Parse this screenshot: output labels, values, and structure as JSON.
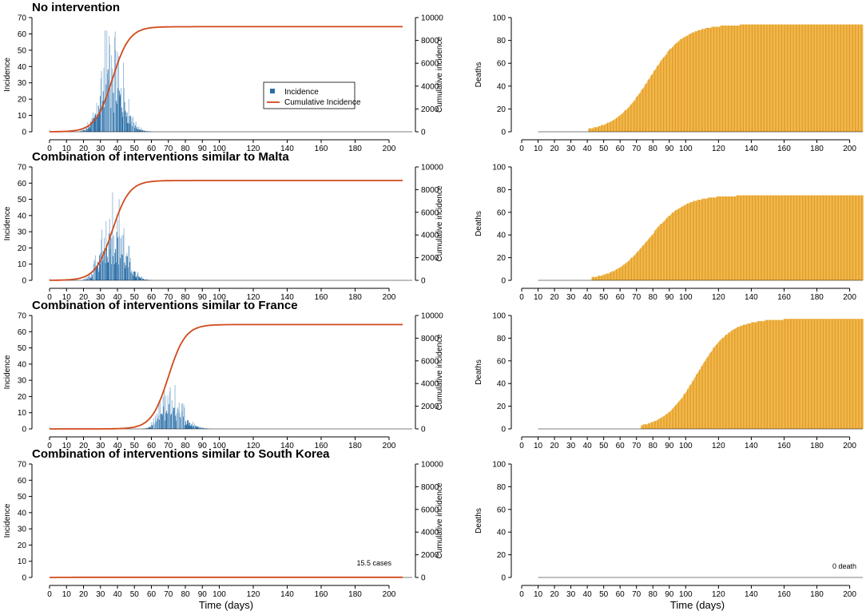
{
  "chart_data": {
    "type": "multi-panel bar/line",
    "xlabel": "Time (days)",
    "x_ticks": [
      0,
      10,
      20,
      30,
      40,
      50,
      60,
      70,
      80,
      90,
      100,
      120,
      140,
      160,
      180,
      200
    ],
    "xlim": [
      0,
      208
    ],
    "incidence_axis": {
      "label": "Incidence",
      "ylim": [
        0,
        70
      ],
      "ticks": [
        0,
        10,
        20,
        30,
        40,
        50,
        60,
        70
      ]
    },
    "cumulative_axis": {
      "label": "Cumulative incidence",
      "ylim": [
        0,
        10000
      ],
      "ticks": [
        0,
        2000,
        4000,
        6000,
        8000,
        10000
      ]
    },
    "deaths_axis": {
      "label": "Deaths",
      "ylim": [
        0,
        100
      ],
      "ticks": [
        0,
        20,
        40,
        60,
        80,
        100
      ]
    },
    "legend": {
      "entries": [
        "Incidence",
        "Cumulative Incidence"
      ],
      "position": "center-right of first panel"
    },
    "colors": {
      "incidence": "#2c6fa6",
      "incidence_light": "#8fb6d6",
      "cumulative": "#d14a1c",
      "deaths": "#f0b84a",
      "deaths_dark": "#e29a2a"
    },
    "scenarios": [
      {
        "title": "No intervention",
        "incidence": {
          "peak_day": 36,
          "peak": 62,
          "spread_left": 6,
          "spread_right": 7,
          "start_day": 18,
          "end_day": 75
        },
        "cumulative": {
          "final": 9200,
          "midpoint_day": 37,
          "rate": 0.2
        },
        "deaths": {
          "final": 94,
          "midpoint_day": 78,
          "rate": 0.095,
          "start_day": 41
        },
        "annotation": ""
      },
      {
        "title": "Combination of interventions similar to Malta",
        "incidence": {
          "peak_day": 37,
          "peak": 50,
          "spread_left": 6,
          "spread_right": 7,
          "start_day": 20,
          "end_day": 75
        },
        "cumulative": {
          "final": 8800,
          "midpoint_day": 37,
          "rate": 0.2
        },
        "deaths": {
          "final": 75,
          "midpoint_day": 78,
          "rate": 0.095,
          "start_day": 43
        },
        "annotation": ""
      },
      {
        "title": "Combination of interventions similar to France",
        "incidence": {
          "peak_day": 70,
          "peak": 25,
          "spread_left": 5,
          "spread_right": 8,
          "start_day": 55,
          "end_day": 115
        },
        "cumulative": {
          "final": 9200,
          "midpoint_day": 70,
          "rate": 0.2
        },
        "deaths": {
          "final": 97,
          "midpoint_day": 107,
          "rate": 0.1,
          "start_day": 73
        },
        "annotation": ""
      },
      {
        "title": "Combination of interventions similar to South Korea",
        "incidence": {
          "peak_day": 0,
          "peak": 0,
          "spread_left": 1,
          "spread_right": 1,
          "start_day": 0,
          "end_day": 0
        },
        "cumulative": {
          "final": 15.5,
          "midpoint_day": 10,
          "rate": 0.2
        },
        "deaths": {
          "final": 0,
          "midpoint_day": 100,
          "rate": 0.1,
          "start_day": 0
        },
        "annotation": "15.5 cases",
        "death_annotation": "0 death"
      }
    ]
  }
}
